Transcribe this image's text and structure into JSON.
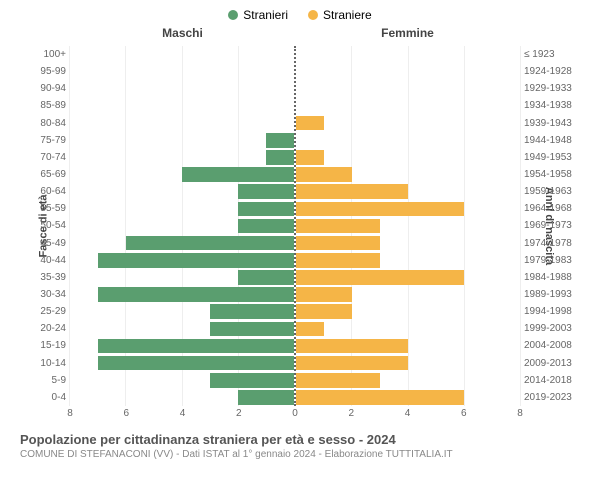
{
  "legend": {
    "male_label": "Stranieri",
    "female_label": "Straniere"
  },
  "headers": {
    "male": "Maschi",
    "female": "Femmine"
  },
  "axis_labels": {
    "left": "Fasce di età",
    "right": "Anni di nascita"
  },
  "colors": {
    "male": "#5a9e6f",
    "female": "#f5b547",
    "grid": "#eeeeee",
    "center_line": "#666666",
    "background": "#ffffff"
  },
  "x_axis": {
    "max": 8,
    "ticks": [
      0,
      2,
      4,
      6,
      8
    ]
  },
  "age_groups": [
    {
      "age": "100+",
      "birth": "≤ 1923",
      "male": 0,
      "female": 0
    },
    {
      "age": "95-99",
      "birth": "1924-1928",
      "male": 0,
      "female": 0
    },
    {
      "age": "90-94",
      "birth": "1929-1933",
      "male": 0,
      "female": 0
    },
    {
      "age": "85-89",
      "birth": "1934-1938",
      "male": 0,
      "female": 0
    },
    {
      "age": "80-84",
      "birth": "1939-1943",
      "male": 0,
      "female": 1
    },
    {
      "age": "75-79",
      "birth": "1944-1948",
      "male": 1,
      "female": 0
    },
    {
      "age": "70-74",
      "birth": "1949-1953",
      "male": 1,
      "female": 1
    },
    {
      "age": "65-69",
      "birth": "1954-1958",
      "male": 4,
      "female": 2
    },
    {
      "age": "60-64",
      "birth": "1959-1963",
      "male": 2,
      "female": 4
    },
    {
      "age": "55-59",
      "birth": "1964-1968",
      "male": 2,
      "female": 6
    },
    {
      "age": "50-54",
      "birth": "1969-1973",
      "male": 2,
      "female": 3
    },
    {
      "age": "45-49",
      "birth": "1974-1978",
      "male": 6,
      "female": 3
    },
    {
      "age": "40-44",
      "birth": "1979-1983",
      "male": 7,
      "female": 3
    },
    {
      "age": "35-39",
      "birth": "1984-1988",
      "male": 2,
      "female": 6
    },
    {
      "age": "30-34",
      "birth": "1989-1993",
      "male": 7,
      "female": 2
    },
    {
      "age": "25-29",
      "birth": "1994-1998",
      "male": 3,
      "female": 2
    },
    {
      "age": "20-24",
      "birth": "1999-2003",
      "male": 3,
      "female": 1
    },
    {
      "age": "15-19",
      "birth": "2004-2008",
      "male": 7,
      "female": 4
    },
    {
      "age": "10-14",
      "birth": "2009-2013",
      "male": 7,
      "female": 4
    },
    {
      "age": "5-9",
      "birth": "2014-2018",
      "male": 3,
      "female": 3
    },
    {
      "age": "0-4",
      "birth": "2019-2023",
      "male": 2,
      "female": 6
    }
  ],
  "footer": {
    "title": "Popolazione per cittadinanza straniera per età e sesso - 2024",
    "subtitle": "COMUNE DI STEFANACONI (VV) - Dati ISTAT al 1° gennaio 2024 - Elaborazione TUTTITALIA.IT"
  }
}
